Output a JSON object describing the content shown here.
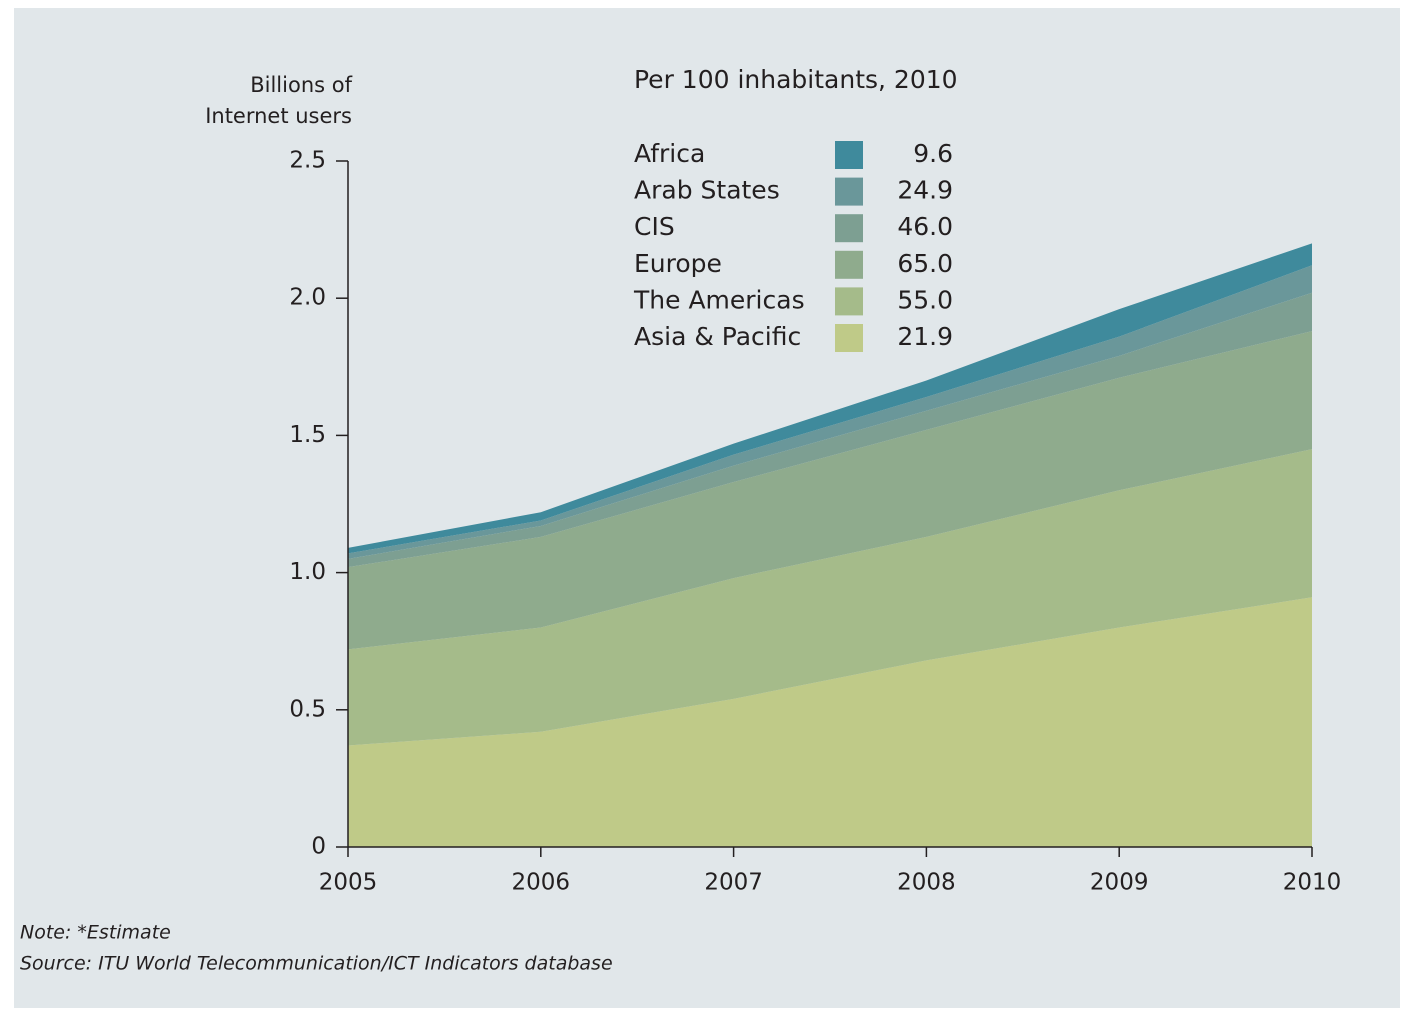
{
  "chart_data": {
    "type": "stacked_area",
    "y_label": [
      "Billions of",
      "Internet users"
    ],
    "legend_title": "Per 100 inhabitants, 2010",
    "x": [
      2005,
      2006,
      2007,
      2008,
      2009,
      2010
    ],
    "xlim": [
      2005,
      2010
    ],
    "xticks": [
      2005,
      2006,
      2007,
      2008,
      2009,
      2010
    ],
    "ylim": [
      0,
      2.5
    ],
    "yticks": [
      0,
      0.5,
      {
        "value": 1,
        "label": "1.0"
      },
      1.5,
      {
        "value": 2,
        "label": "2.0"
      },
      2.5
    ],
    "series": [
      {
        "name": "Asia & Pacific",
        "color": "#bfca88",
        "values": [
          0.37,
          0.42,
          0.54,
          0.68,
          0.8,
          0.91
        ],
        "rate": {
          "value": 21.9,
          "label": "21.9"
        }
      },
      {
        "name": "The Americas",
        "color": "#a5bb8a",
        "values": [
          0.35,
          0.38,
          0.44,
          0.45,
          0.5,
          0.54
        ],
        "rate": {
          "value": 55,
          "label": "55.0"
        }
      },
      {
        "name": "Europe",
        "color": "#8fab8d",
        "values": [
          0.3,
          0.33,
          0.35,
          0.39,
          0.41,
          0.43
        ],
        "rate": {
          "value": 65,
          "label": "65.0"
        }
      },
      {
        "name": "CIS",
        "color": "#7d9f92",
        "values": [
          0.03,
          0.04,
          0.06,
          0.07,
          0.08,
          0.14
        ],
        "rate": {
          "value": 46,
          "label": "46.0"
        }
      },
      {
        "name": "Arab States",
        "color": "#6a979a",
        "values": [
          0.02,
          0.02,
          0.04,
          0.05,
          0.07,
          0.1
        ],
        "rate": {
          "value": 24.9,
          "label": "24.9"
        }
      },
      {
        "name": "Africa",
        "color": "#3f8a9c",
        "values": [
          0.02,
          0.03,
          0.04,
          0.06,
          0.1,
          0.08
        ],
        "rate": {
          "value": 9.6,
          "label": "9.6"
        }
      }
    ],
    "notes": [
      "Note: *Estimate",
      "Source: ITU World Telecommunication/ICT Indicators database"
    ]
  }
}
